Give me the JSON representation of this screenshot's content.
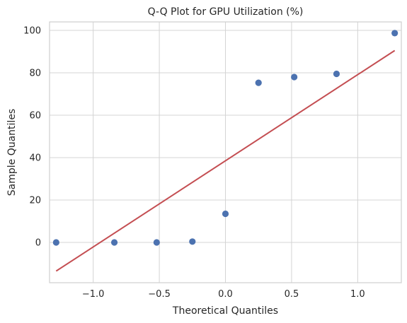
{
  "chart_data": {
    "type": "scatter",
    "title": "Q-Q Plot for GPU Utilization (%)",
    "xlabel": "Theoretical Quantiles",
    "ylabel": "Sample Quantiles",
    "xlim": [
      -1.33,
      1.33
    ],
    "ylim": [
      -19,
      104
    ],
    "x_ticks": [
      -1.0,
      -0.5,
      0.0,
      0.5,
      1.0
    ],
    "x_tick_labels": [
      "−1.0",
      "−0.5",
      "0.0",
      "0.5",
      "1.0"
    ],
    "y_ticks": [
      0,
      20,
      40,
      60,
      80,
      100
    ],
    "y_tick_labels": [
      "0",
      "20",
      "40",
      "60",
      "80",
      "100"
    ],
    "grid": true,
    "legend": "none",
    "colors": {
      "points": "#4c72b0",
      "reference_line": "#c44e52",
      "grid": "#d4d4d4",
      "axes_text": "#262626",
      "frame": "#cfcfcf"
    },
    "points": [
      {
        "x": -1.28,
        "y": 0.0
      },
      {
        "x": -0.84,
        "y": 0.0
      },
      {
        "x": -0.52,
        "y": 0.0
      },
      {
        "x": -0.25,
        "y": 0.4
      },
      {
        "x": 0.0,
        "y": 13.5
      },
      {
        "x": 0.25,
        "y": 75.3
      },
      {
        "x": 0.52,
        "y": 78.0
      },
      {
        "x": 0.84,
        "y": 79.5
      },
      {
        "x": 1.28,
        "y": 98.7
      }
    ],
    "reference_line": {
      "x": [
        -1.28,
        1.28
      ],
      "y": [
        -13.5,
        90.5
      ]
    }
  }
}
